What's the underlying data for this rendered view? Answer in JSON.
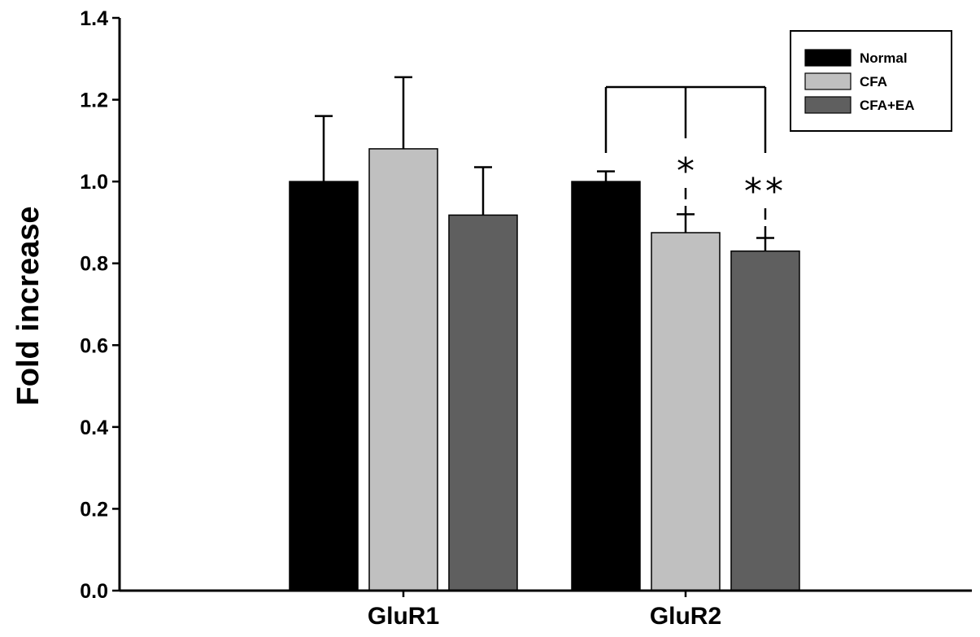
{
  "chart_data": {
    "type": "bar",
    "title": "",
    "xlabel": "",
    "ylabel": "Fold increase",
    "ylim": [
      0,
      1.4
    ],
    "yticks": [
      0.0,
      0.2,
      0.4,
      0.6,
      0.8,
      1.0,
      1.2,
      1.4
    ],
    "ytick_labels": [
      "0.0",
      "0.2",
      "0.4",
      "0.6",
      "0.8",
      "1.0",
      "1.2",
      "1.4"
    ],
    "categories": [
      "GluR1",
      "GluR2"
    ],
    "series": [
      {
        "name": "Normal",
        "color": "#000000",
        "values": [
          1.0,
          1.0
        ],
        "errors": [
          0.16,
          0.025
        ]
      },
      {
        "name": "CFA",
        "color": "#c0c0c0",
        "values": [
          1.08,
          0.875
        ],
        "errors": [
          0.175,
          0.045
        ]
      },
      {
        "name": "CFA+EA",
        "color": "#5f5f5f",
        "values": [
          0.918,
          0.83
        ],
        "errors": [
          0.117,
          0.032
        ]
      }
    ],
    "legend": {
      "position": "top-right",
      "framed": true
    },
    "grid": false,
    "significance": [
      {
        "category": "GluR2",
        "series": "CFA",
        "label": "*"
      },
      {
        "category": "GluR2",
        "series": "CFA+EA",
        "label": "**"
      }
    ]
  }
}
